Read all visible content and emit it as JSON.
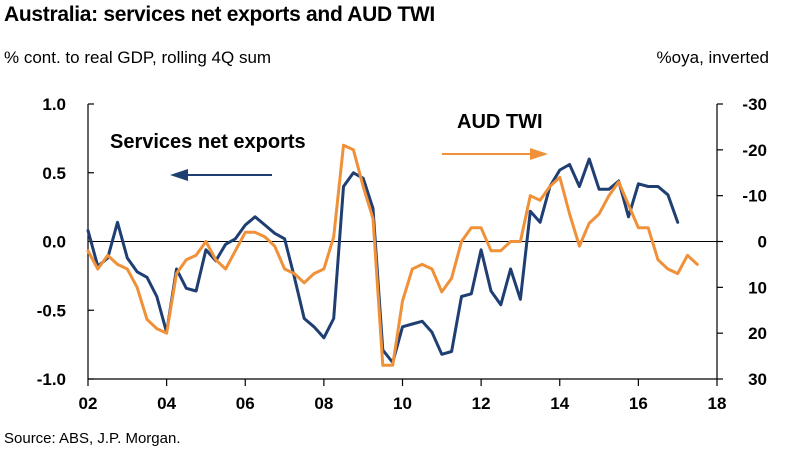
{
  "title": "Australia: services net exports and AUD TWI",
  "subtitle_left": "% cont. to real GDP, rolling 4Q sum",
  "subtitle_right": "%oya, inverted",
  "source": "Source: ABS, J.P. Morgan.",
  "colors": {
    "services": "#1f3f73",
    "aud": "#f0913a",
    "axis": "#000000"
  },
  "chart_data": {
    "type": "line",
    "title": "Australia: services net exports and AUD TWI",
    "xlabel": "",
    "x_ticks": [
      "02",
      "04",
      "06",
      "08",
      "10",
      "12",
      "14",
      "16",
      "18"
    ],
    "xlim": [
      2002,
      2018
    ],
    "y_left": {
      "label": "% cont. to real GDP, rolling 4Q sum",
      "lim": [
        -1.0,
        1.0
      ],
      "ticks": [
        "1.0",
        "0.5",
        "0.0",
        "-0.5",
        "-1.0"
      ],
      "tick_values": [
        1.0,
        0.5,
        0.0,
        -0.5,
        -1.0
      ]
    },
    "y_right": {
      "label": "%oya, inverted",
      "lim": [
        30,
        -30
      ],
      "inverted": true,
      "ticks": [
        "-30",
        "-20",
        "-10",
        "0",
        "10",
        "20",
        "30"
      ],
      "tick_values": [
        -30,
        -20,
        -10,
        0,
        10,
        20,
        30
      ]
    },
    "annotations": [
      {
        "text": "Services net exports",
        "arrow": "left",
        "series": "Services net exports"
      },
      {
        "text": "AUD TWI",
        "arrow": "right",
        "series": "AUD TWI"
      }
    ],
    "series": [
      {
        "name": "Services net exports",
        "axis": "left",
        "x": [
          2002.0,
          2002.25,
          2002.5,
          2002.75,
          2003.0,
          2003.25,
          2003.5,
          2003.75,
          2004.0,
          2004.25,
          2004.5,
          2004.75,
          2005.0,
          2005.25,
          2005.5,
          2005.75,
          2006.0,
          2006.25,
          2006.5,
          2006.75,
          2007.0,
          2007.25,
          2007.5,
          2007.75,
          2008.0,
          2008.25,
          2008.5,
          2008.75,
          2009.0,
          2009.25,
          2009.5,
          2009.75,
          2010.0,
          2010.25,
          2010.5,
          2010.75,
          2011.0,
          2011.25,
          2011.5,
          2011.75,
          2012.0,
          2012.25,
          2012.5,
          2012.75,
          2013.0,
          2013.25,
          2013.5,
          2013.75,
          2014.0,
          2014.25,
          2014.5,
          2014.75,
          2015.0,
          2015.25,
          2015.5,
          2015.75,
          2016.0,
          2016.25,
          2016.5,
          2016.75,
          2017.0
        ],
        "values": [
          0.08,
          -0.18,
          -0.12,
          0.14,
          -0.12,
          -0.22,
          -0.26,
          -0.4,
          -0.66,
          -0.2,
          -0.34,
          -0.36,
          -0.06,
          -0.14,
          -0.02,
          0.02,
          0.12,
          0.18,
          0.12,
          0.06,
          0.02,
          -0.26,
          -0.56,
          -0.62,
          -0.7,
          -0.56,
          0.4,
          0.5,
          0.46,
          0.24,
          -0.79,
          -0.88,
          -0.62,
          -0.6,
          -0.58,
          -0.66,
          -0.82,
          -0.8,
          -0.4,
          -0.38,
          -0.06,
          -0.36,
          -0.46,
          -0.2,
          -0.42,
          0.22,
          0.14,
          0.4,
          0.52,
          0.56,
          0.4,
          0.6,
          0.38,
          0.38,
          0.44,
          0.18,
          0.42,
          0.4,
          0.4,
          0.34,
          0.14
        ]
      },
      {
        "name": "AUD TWI",
        "axis": "right",
        "x": [
          2002.0,
          2002.25,
          2002.5,
          2002.75,
          2003.0,
          2003.25,
          2003.5,
          2003.75,
          2004.0,
          2004.25,
          2004.5,
          2004.75,
          2005.0,
          2005.25,
          2005.5,
          2005.75,
          2006.0,
          2006.25,
          2006.5,
          2006.75,
          2007.0,
          2007.25,
          2007.5,
          2007.75,
          2008.0,
          2008.25,
          2008.5,
          2008.75,
          2009.0,
          2009.25,
          2009.5,
          2009.75,
          2010.0,
          2010.25,
          2010.5,
          2010.75,
          2011.0,
          2011.25,
          2011.5,
          2011.75,
          2012.0,
          2012.25,
          2012.5,
          2012.75,
          2013.0,
          2013.25,
          2013.5,
          2013.75,
          2014.0,
          2014.25,
          2014.5,
          2014.75,
          2015.0,
          2015.25,
          2015.5,
          2015.75,
          2016.0,
          2016.25,
          2016.5,
          2016.75,
          2017.0,
          2017.25,
          2017.5
        ],
        "values": [
          2,
          6,
          3,
          5,
          6,
          10,
          17,
          19,
          20,
          7,
          4,
          3,
          0,
          4,
          6,
          2,
          -2,
          -2,
          -1,
          1,
          6,
          7,
          9,
          7,
          6,
          -1,
          -21,
          -20,
          -12,
          -5,
          27,
          27,
          13,
          6,
          5,
          6,
          11,
          8,
          0,
          -3,
          -3,
          2,
          2,
          0,
          0,
          -10,
          -9,
          -12,
          -14,
          -6,
          1,
          -4,
          -6,
          -10,
          -13,
          -8,
          -3,
          -3,
          4,
          6,
          7,
          3,
          5
        ]
      }
    ]
  }
}
